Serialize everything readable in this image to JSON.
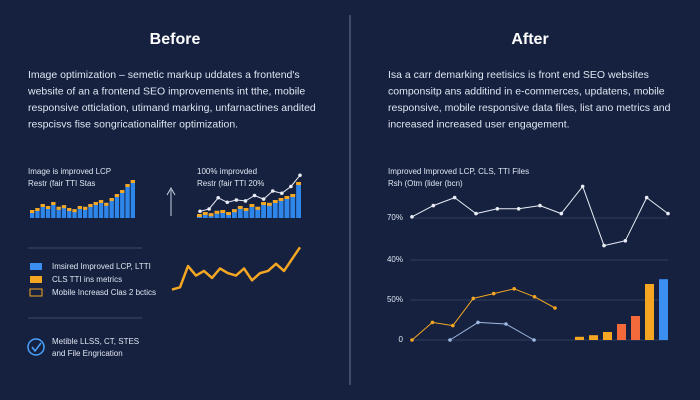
{
  "before": {
    "title": "Before",
    "paragraph": [
      "Image optimization – semetic markup uddates a frontend's",
      "website of an a frontend SEO improvements int tthe, mobile",
      "responsive otticlation, utimand marking, unfarnactines andited",
      "respcisvs fise songricationalifter optimization."
    ],
    "chart1": {
      "label": "Image is improved LCP",
      "sublabel": "Restr (fair TTI Stas",
      "values": [
        20,
        25,
        35,
        30,
        40,
        28,
        32,
        25,
        22,
        30,
        28,
        35,
        40,
        45,
        38,
        50,
        60,
        70,
        85,
        95
      ]
    },
    "chart2": {
      "label": "100% improvded",
      "sublabel": "Restr (fair TTI 20%",
      "values": [
        10,
        15,
        12,
        18,
        20,
        15,
        22,
        30,
        25,
        35,
        28,
        40,
        38,
        45,
        50,
        55,
        60,
        90
      ],
      "line": [
        15,
        20,
        45,
        35,
        40,
        38,
        50,
        42,
        60,
        55,
        70,
        95
      ]
    },
    "legend": [
      "Imsired Improved LCP, LTTI",
      "CLS TTI ins metrics",
      "Mobile Increasd Clas 2 bctics"
    ],
    "trend": [
      5,
      10,
      55,
      35,
      45,
      30,
      50,
      40,
      35,
      50,
      25,
      40,
      45,
      60,
      45,
      70,
      95
    ],
    "footer": [
      "Metible LLSS, CT, STES",
      "and File Engrication"
    ]
  },
  "after": {
    "title": "After",
    "paragraph": [
      "Isa a carr demarking reetisics is front end SEO websites",
      "componsitp ans additind in e-commerces, updatens, mobile",
      "responsive, mobile responsive data files, list ano metrics and",
      "increased increased user engagement."
    ],
    "chart": {
      "label": "Improved Improved LCP, CLS, TTI Files",
      "sublabel": "Rsh (Otm (lider (bcn)",
      "ticks": [
        "70%",
        "40%",
        "50%",
        "0"
      ],
      "line1": [
        77,
        84,
        89,
        79,
        82,
        82,
        84,
        79,
        96,
        59,
        62,
        89,
        79
      ],
      "line2": [
        0,
        11,
        9,
        26,
        29,
        32,
        27,
        20
      ],
      "line3": [
        0,
        11,
        10,
        0
      ],
      "bars": [
        2,
        3,
        5,
        10,
        15,
        35,
        38
      ]
    }
  }
}
